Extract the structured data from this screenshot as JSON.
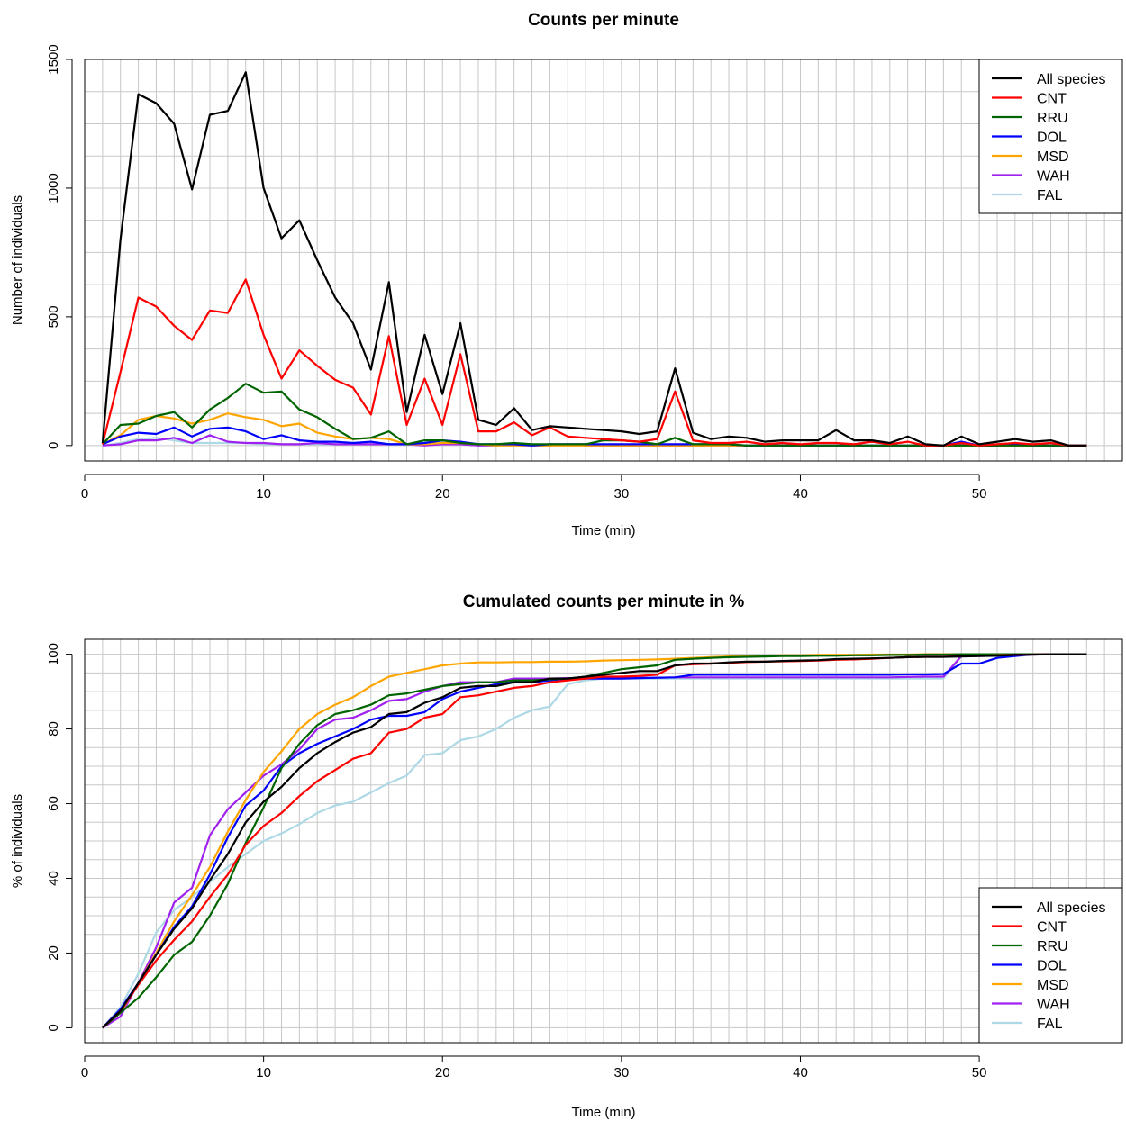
{
  "chart_data": [
    {
      "type": "line",
      "title": "Counts per minute",
      "xlabel": "Time (min)",
      "ylabel": "Number of individuals",
      "xlim": [
        0,
        58
      ],
      "ylim": [
        -60,
        1500
      ],
      "xticks": [
        0,
        10,
        20,
        30,
        40,
        50
      ],
      "yticks": [
        0,
        500,
        1000,
        1500
      ],
      "grid": true,
      "legend_position": "top-right",
      "x": [
        1,
        2,
        3,
        4,
        5,
        6,
        7,
        8,
        9,
        10,
        11,
        12,
        13,
        14,
        15,
        16,
        17,
        18,
        19,
        20,
        21,
        22,
        23,
        24,
        25,
        26,
        27,
        28,
        29,
        30,
        31,
        32,
        33,
        34,
        35,
        36,
        37,
        38,
        39,
        40,
        41,
        42,
        43,
        44,
        45,
        46,
        47,
        48,
        49,
        50,
        51,
        52,
        53,
        54,
        55,
        56
      ],
      "series": [
        {
          "name": "All species",
          "color": "#000000",
          "values": [
            10,
            800,
            1365,
            1330,
            1250,
            995,
            1285,
            1300,
            1450,
            1000,
            805,
            875,
            720,
            575,
            475,
            295,
            635,
            130,
            430,
            200,
            475,
            100,
            80,
            145,
            60,
            75,
            70,
            65,
            60,
            55,
            45,
            55,
            300,
            50,
            25,
            35,
            30,
            15,
            20,
            20,
            20,
            60,
            20,
            20,
            10,
            35,
            5,
            0,
            35,
            5,
            15,
            25,
            15,
            20,
            0,
            0
          ]
        },
        {
          "name": "CNT",
          "color": "#ff0000",
          "values": [
            5,
            285,
            575,
            540,
            465,
            410,
            525,
            515,
            645,
            430,
            260,
            370,
            310,
            255,
            225,
            120,
            425,
            80,
            260,
            80,
            355,
            55,
            55,
            90,
            40,
            70,
            35,
            30,
            25,
            20,
            15,
            25,
            210,
            20,
            10,
            10,
            15,
            5,
            10,
            5,
            10,
            10,
            5,
            15,
            5,
            15,
            0,
            0,
            10,
            0,
            5,
            10,
            5,
            10,
            0,
            0
          ]
        },
        {
          "name": "RRU",
          "color": "#006400",
          "values": [
            5,
            80,
            85,
            115,
            130,
            70,
            140,
            185,
            240,
            205,
            210,
            140,
            110,
            65,
            25,
            30,
            55,
            5,
            20,
            20,
            10,
            5,
            5,
            10,
            5,
            5,
            5,
            5,
            20,
            20,
            15,
            5,
            30,
            5,
            5,
            5,
            0,
            0,
            0,
            0,
            0,
            0,
            0,
            0,
            0,
            0,
            0,
            0,
            0,
            0,
            0,
            0,
            0,
            0,
            0,
            0
          ]
        },
        {
          "name": "DOL",
          "color": "#0000ff",
          "values": [
            5,
            35,
            50,
            45,
            70,
            35,
            65,
            70,
            55,
            25,
            40,
            20,
            15,
            15,
            10,
            15,
            5,
            5,
            10,
            20,
            15,
            5,
            5,
            5,
            0,
            5,
            5,
            5,
            5,
            5,
            5,
            5,
            5,
            5,
            5,
            5,
            0,
            0,
            0,
            0,
            0,
            0,
            0,
            0,
            0,
            0,
            0,
            0,
            15,
            0,
            0,
            5,
            0,
            0,
            0,
            0
          ]
        },
        {
          "name": "MSD",
          "color": "#ffa500",
          "values": [
            5,
            40,
            100,
            115,
            105,
            85,
            100,
            125,
            110,
            100,
            75,
            85,
            50,
            35,
            25,
            30,
            25,
            5,
            5,
            10,
            10,
            5,
            0,
            0,
            0,
            0,
            0,
            0,
            0,
            0,
            0,
            0,
            0,
            0,
            0,
            0,
            0,
            0,
            0,
            0,
            0,
            0,
            0,
            0,
            0,
            0,
            0,
            0,
            0,
            0,
            0,
            0,
            0,
            0,
            0,
            0
          ]
        },
        {
          "name": "WAH",
          "color": "#a020f0",
          "values": [
            0,
            5,
            20,
            20,
            30,
            10,
            40,
            15,
            10,
            10,
            5,
            5,
            10,
            5,
            5,
            5,
            5,
            5,
            0,
            5,
            5,
            0,
            0,
            5,
            0,
            0,
            5,
            0,
            0,
            0,
            0,
            0,
            0,
            0,
            0,
            0,
            0,
            0,
            0,
            0,
            0,
            0,
            0,
            0,
            0,
            0,
            0,
            0,
            5,
            0,
            0,
            0,
            0,
            0,
            0,
            0
          ]
        },
        {
          "name": "FAL",
          "color": "#add8e6",
          "values": [
            0,
            10,
            25,
            30,
            20,
            10,
            10,
            10,
            10,
            5,
            5,
            5,
            5,
            5,
            5,
            5,
            5,
            5,
            5,
            5,
            5,
            5,
            0,
            5,
            5,
            0,
            5,
            5,
            0,
            0,
            0,
            0,
            0,
            0,
            0,
            0,
            0,
            0,
            0,
            0,
            0,
            0,
            0,
            0,
            0,
            0,
            0,
            0,
            0,
            0,
            0,
            0,
            0,
            0,
            0,
            0
          ]
        }
      ]
    },
    {
      "type": "line",
      "title": "Cumulated counts per minute in %",
      "xlabel": "Time (min)",
      "ylabel": "% of individuals",
      "xlim": [
        0,
        58
      ],
      "ylim": [
        -4,
        104
      ],
      "xticks": [
        0,
        10,
        20,
        30,
        40,
        50
      ],
      "yticks": [
        0,
        20,
        40,
        60,
        80,
        100
      ],
      "grid": true,
      "legend_position": "bottom-right",
      "x": [
        1,
        2,
        3,
        4,
        5,
        6,
        7,
        8,
        9,
        10,
        11,
        12,
        13,
        14,
        15,
        16,
        17,
        18,
        19,
        20,
        21,
        22,
        23,
        24,
        25,
        26,
        27,
        28,
        29,
        30,
        31,
        32,
        33,
        34,
        35,
        36,
        37,
        38,
        39,
        40,
        41,
        42,
        43,
        44,
        45,
        46,
        47,
        48,
        49,
        50,
        51,
        52,
        53,
        54,
        55,
        56
      ],
      "series": [
        {
          "name": "All species",
          "color": "#000000",
          "values": [
            0,
            4.5,
            12,
            19.5,
            26.5,
            32,
            39.5,
            46.5,
            55,
            60.5,
            64.5,
            69.5,
            73.5,
            76.5,
            79,
            80.5,
            84,
            84.5,
            87,
            88.5,
            91,
            91.5,
            91.5,
            92.5,
            92.5,
            93.5,
            93.5,
            94,
            94.5,
            95,
            95.5,
            95.5,
            97,
            97.5,
            97.5,
            97.8,
            98,
            98,
            98.2,
            98.3,
            98.4,
            98.7,
            98.8,
            98.9,
            99,
            99.2,
            99.3,
            99.3,
            99.4,
            99.5,
            99.6,
            99.8,
            99.9,
            100,
            100,
            100
          ]
        },
        {
          "name": "CNT",
          "color": "#ff0000",
          "values": [
            0,
            4.5,
            11.5,
            18,
            23.5,
            28.5,
            35,
            41,
            49,
            54,
            57.5,
            62,
            66,
            69,
            72,
            73.5,
            79,
            80,
            83,
            84,
            88.5,
            89,
            90,
            91,
            91.5,
            92.5,
            93,
            93.5,
            94,
            94,
            94.2,
            94.5,
            97,
            97.3,
            97.5,
            97.7,
            97.9,
            98,
            98.1,
            98.2,
            98.3,
            98.5,
            98.6,
            98.8,
            99,
            99.2,
            99.3,
            99.3,
            99.5,
            99.6,
            99.7,
            99.8,
            99.9,
            100,
            100,
            100
          ]
        },
        {
          "name": "RRU",
          "color": "#006400",
          "values": [
            0,
            4,
            8,
            13.5,
            19.5,
            23,
            30,
            38.5,
            49.5,
            59,
            69.5,
            76,
            81,
            84,
            85,
            86.5,
            89,
            89.5,
            90.5,
            91.5,
            92,
            92.5,
            92.5,
            93,
            93,
            93.3,
            93.5,
            94,
            95,
            96,
            96.5,
            97,
            98.5,
            98.8,
            99,
            99.2,
            99.3,
            99.4,
            99.5,
            99.5,
            99.6,
            99.6,
            99.7,
            99.7,
            99.8,
            99.8,
            99.9,
            99.9,
            100,
            100,
            100,
            100,
            100,
            100,
            100,
            100
          ]
        },
        {
          "name": "DOL",
          "color": "#0000ff",
          "values": [
            0,
            5,
            12,
            19.5,
            27,
            32.5,
            41,
            51,
            59.5,
            63.5,
            70,
            73.5,
            76,
            78,
            80,
            82.5,
            83.5,
            83.5,
            84.5,
            88,
            90,
            91,
            92,
            92.5,
            92.5,
            93,
            93.5,
            93.5,
            93.5,
            93.5,
            93.6,
            93.7,
            93.8,
            94.5,
            94.5,
            94.5,
            94.5,
            94.5,
            94.5,
            94.5,
            94.5,
            94.5,
            94.5,
            94.5,
            94.5,
            94.6,
            94.6,
            94.7,
            97.5,
            97.5,
            99,
            99.5,
            100,
            100,
            100,
            100
          ]
        },
        {
          "name": "MSD",
          "color": "#ffa500",
          "values": [
            0,
            4,
            12,
            20,
            28.5,
            35.5,
            43,
            52.5,
            61,
            68.5,
            74,
            80,
            84,
            86.5,
            88.5,
            91.5,
            94,
            95,
            96,
            97,
            97.5,
            97.8,
            97.8,
            97.9,
            97.9,
            98,
            98,
            98.1,
            98.3,
            98.4,
            98.5,
            98.6,
            98.8,
            99,
            99.2,
            99.4,
            99.5,
            99.6,
            99.7,
            99.7,
            99.8,
            99.8,
            99.8,
            99.9,
            99.9,
            99.9,
            100,
            100,
            100,
            100,
            100,
            100,
            100,
            100,
            100,
            100
          ]
        },
        {
          "name": "WAH",
          "color": "#a020f0",
          "values": [
            0,
            3,
            12,
            21.5,
            33.5,
            37.5,
            51.5,
            58.5,
            63,
            67.5,
            70.5,
            74.5,
            80,
            82.5,
            83,
            85,
            87.5,
            88,
            90,
            91.5,
            92.5,
            92.5,
            92.5,
            93.5,
            93.5,
            93.5,
            93.6,
            93.6,
            93.7,
            93.7,
            93.7,
            93.7,
            93.8,
            93.8,
            93.8,
            93.8,
            93.8,
            93.8,
            93.8,
            93.8,
            93.8,
            93.8,
            93.8,
            93.8,
            93.8,
            93.9,
            94,
            94,
            99.5,
            99.5,
            99.7,
            99.8,
            99.9,
            100,
            100,
            100
          ]
        },
        {
          "name": "FAL",
          "color": "#add8e6",
          "values": [
            0,
            5.5,
            14.5,
            25.5,
            31.5,
            35,
            39,
            43,
            46.5,
            50,
            52,
            54.5,
            57.5,
            59.5,
            60.5,
            63,
            65.5,
            67.5,
            73,
            73.5,
            77,
            78,
            80,
            83,
            85,
            86,
            92,
            93,
            93.5,
            93.5,
            93.5,
            93.5,
            93.5,
            93.5,
            93.5,
            93.5,
            93.5,
            93.5,
            93.5,
            93.5,
            93.5,
            93.5,
            93.5,
            93.5,
            93.5,
            93.5,
            93.5,
            93.5,
            99.5,
            99.5,
            99.5,
            99.5,
            99.8,
            100,
            100,
            100
          ]
        }
      ]
    }
  ]
}
